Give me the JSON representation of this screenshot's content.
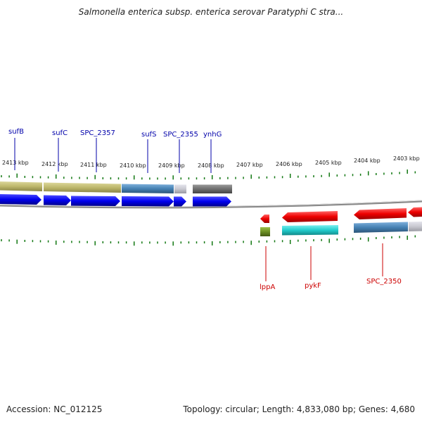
{
  "title": "Salmonella enterica subsp. enterica serovar Paratyphi C stra...",
  "footer": {
    "accession": "Accession: NC_012125",
    "summary": "Topology: circular; Length: 4,833,080 bp; Genes: 4,680"
  },
  "colors": {
    "forward_gene": "#0000ee",
    "reverse_gene": "#ee0000",
    "label_forward": "#0000aa",
    "label_reverse": "#cc0000",
    "tick": "#117711",
    "backbone": "#888888",
    "cog_olive": "#bdb76b",
    "cog_steelblue": "#4682b4",
    "cog_gray": "#c8c8d0",
    "cog_darkgray": "#6e6e6e",
    "cog_green": "#6b8e23",
    "cog_cyan": "#22cccc"
  },
  "kbp_labels": [
    "2413 kbp",
    "2412 kbp",
    "2411 kbp",
    "2410 kbp",
    "2409 kbp",
    "2408 kbp",
    "2407 kbp",
    "2406 kbp",
    "2405 kbp",
    "2404 kbp",
    "2403 kbp"
  ],
  "forward_labels": [
    "sufB",
    "sufC",
    "SPC_2357",
    "sufS",
    "SPC_2355",
    "ynhG"
  ],
  "reverse_labels": [
    "lppA",
    "pykF",
    "SPC_2350"
  ]
}
